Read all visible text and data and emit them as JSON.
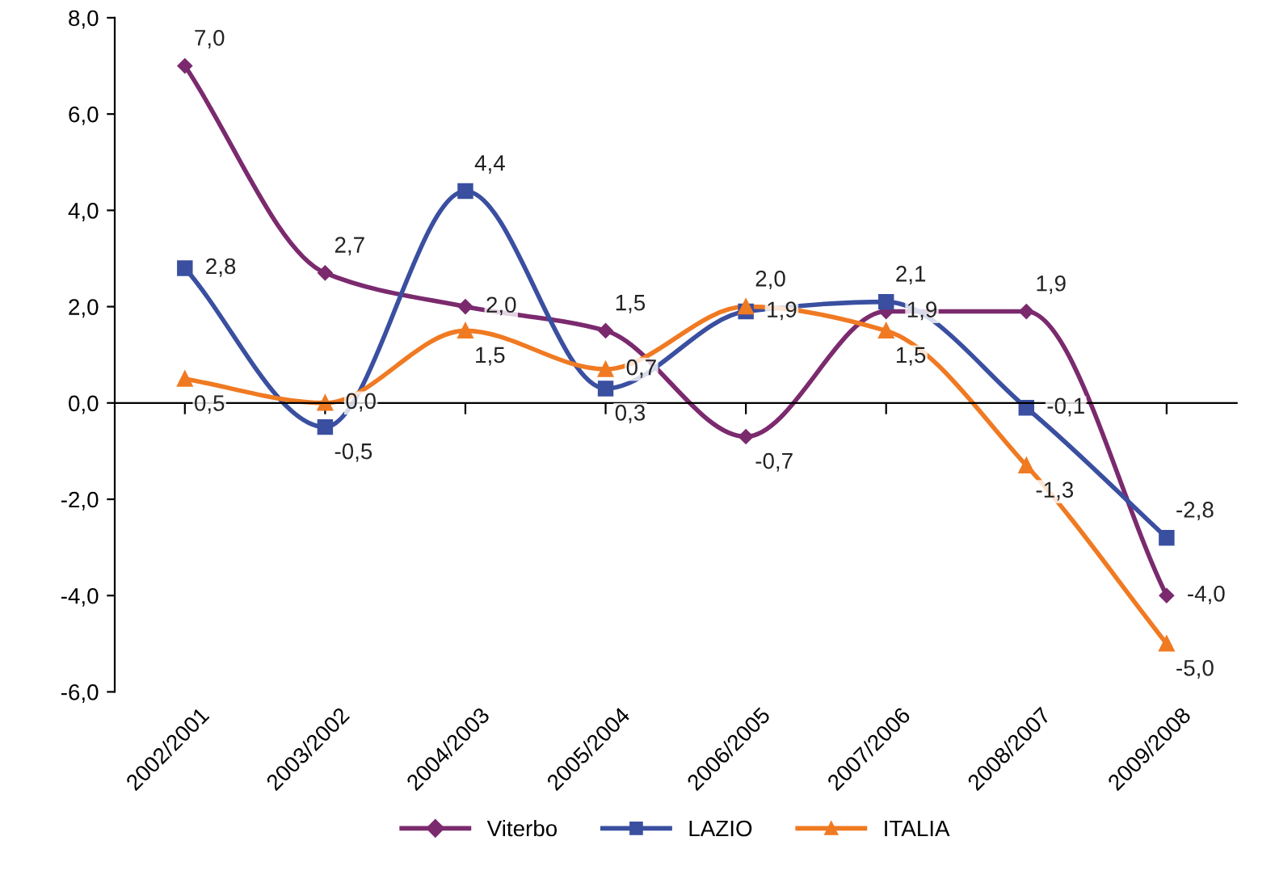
{
  "chart_data": {
    "type": "line",
    "categories": [
      "2002/2001",
      "2003/2002",
      "2004/2003",
      "2005/2004",
      "2006/2005",
      "2007/2006",
      "2008/2007",
      "2009/2008"
    ],
    "series": [
      {
        "name": "Viterbo",
        "color": "#7b2a6e",
        "marker": "diamond",
        "values": [
          7.0,
          2.7,
          2.0,
          1.5,
          -0.7,
          1.9,
          1.9,
          -4.0
        ],
        "value_labels": [
          "7,0",
          "2,7",
          "2,0",
          "1,5",
          "-0,7",
          "1,9",
          "1,9",
          "-4,0"
        ]
      },
      {
        "name": "LAZIO",
        "color": "#3a4fa0",
        "marker": "square",
        "values": [
          2.8,
          -0.5,
          4.4,
          0.3,
          1.9,
          2.1,
          -0.1,
          -2.8
        ],
        "value_labels": [
          "2,8",
          "-0,5",
          "4,4",
          "0,3",
          "1,9",
          "2,1",
          "-0,1",
          "-2,8"
        ]
      },
      {
        "name": "ITALIA",
        "color": "#f07a22",
        "marker": "triangle",
        "values": [
          0.5,
          0.0,
          1.5,
          0.7,
          2.0,
          1.5,
          -1.3,
          -5.0
        ],
        "value_labels": [
          "0,5",
          "0,0",
          "1,5",
          "0,7",
          "2,0",
          "1,5",
          "-1,3",
          "-5,0"
        ]
      }
    ],
    "ylim": [
      -6,
      8
    ],
    "yticks": [
      {
        "value": -6,
        "label": "-6,0"
      },
      {
        "value": -4,
        "label": "-4,0"
      },
      {
        "value": -2,
        "label": "-2,0"
      },
      {
        "value": 0,
        "label": "0,0"
      },
      {
        "value": 2,
        "label": "2,0"
      },
      {
        "value": 4,
        "label": "4,0"
      },
      {
        "value": 6,
        "label": "6,0"
      },
      {
        "value": 8,
        "label": "8,0"
      }
    ],
    "legend": "bottom",
    "line_style": "solid"
  }
}
